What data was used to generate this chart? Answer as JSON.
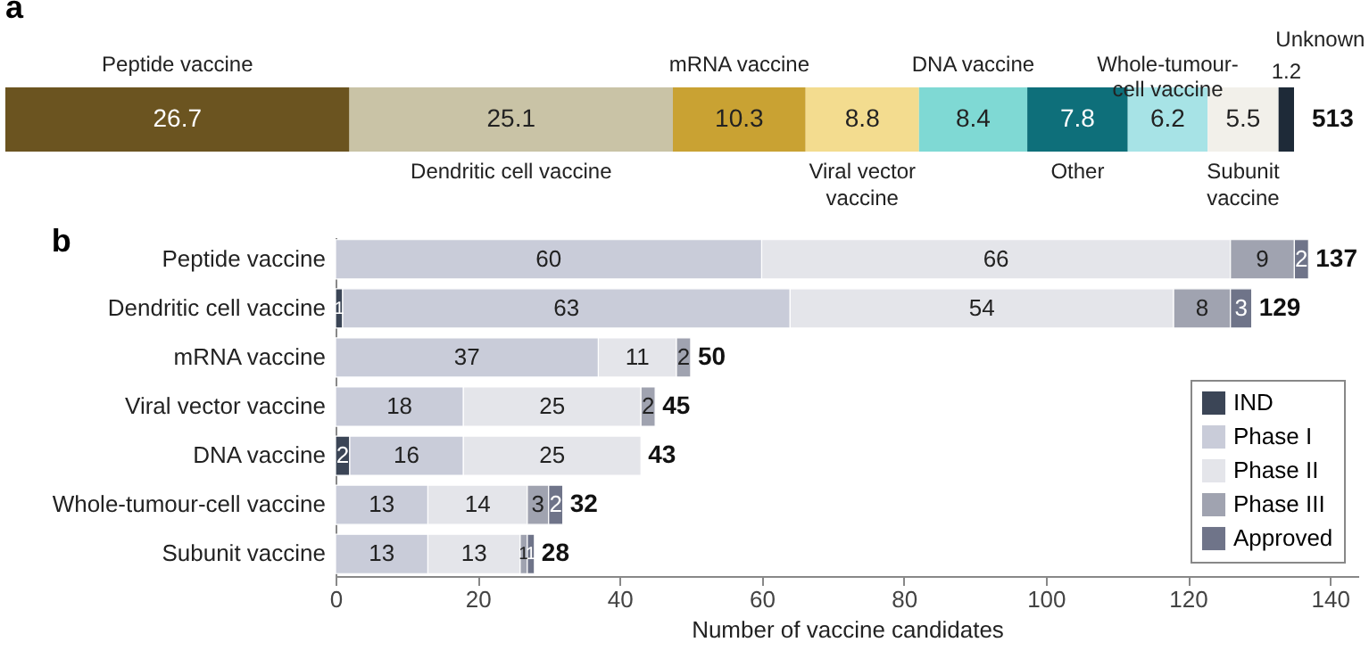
{
  "chart_data": [
    {
      "type": "bar",
      "title": "a",
      "orientation": "horizontal",
      "stacked": true,
      "categories": [
        null
      ],
      "xlim": [
        0,
        100
      ],
      "tick_labels": false,
      "data_labels": true,
      "annotations": [
        "513"
      ],
      "series": [
        {
          "name": "Peptide vaccine",
          "color": "#6b5420",
          "values": [
            26.7
          ]
        },
        {
          "name": "Dendritic cell vaccine",
          "color": "#c9c3a6",
          "values": [
            25.1
          ]
        },
        {
          "name": "mRNA vaccine",
          "color": "#c9a233",
          "values": [
            10.3
          ]
        },
        {
          "name": "Viral vector vaccine",
          "color": "#f3dc8f",
          "values": [
            8.8
          ]
        },
        {
          "name": "DNA vaccine",
          "color": "#7fd9d4",
          "values": [
            8.4
          ]
        },
        {
          "name": "Other",
          "color": "#0e6f7a",
          "values": [
            7.8
          ]
        },
        {
          "name": "Whole-tumour-cell vaccine",
          "color": "#a7e3e6",
          "values": [
            6.2
          ]
        },
        {
          "name": "Subunit vaccine",
          "color": "#f2f0ea",
          "values": [
            5.5
          ]
        },
        {
          "name": "Unknown",
          "color": "#1e2a38",
          "values": [
            1.2
          ]
        }
      ]
    },
    {
      "type": "bar",
      "title": "b",
      "orientation": "horizontal",
      "stacked": true,
      "xlabel": "Number of vaccine candidates",
      "xlim": [
        0,
        144
      ],
      "xticks": [
        0,
        20,
        40,
        60,
        80,
        100,
        120,
        140
      ],
      "legend": "bottom right",
      "data_labels": true,
      "categories": [
        "Peptide vaccine",
        "Dendritic cell vaccine",
        "mRNA vaccine",
        "Viral vector vaccine",
        "DNA vaccine",
        "Whole-tumour-cell vaccine",
        "Subunit vaccine"
      ],
      "totals": [
        "137",
        "129",
        "50",
        "45",
        "43",
        "32",
        "28"
      ],
      "series": [
        {
          "name": "IND",
          "color": "#3b4556",
          "values": [
            null,
            1,
            null,
            null,
            2,
            null,
            null
          ]
        },
        {
          "name": "Phase I",
          "color": "#c9ccd9",
          "values": [
            60,
            63,
            37,
            18,
            16,
            13,
            13
          ]
        },
        {
          "name": "Phase II",
          "color": "#e4e5ea",
          "values": [
            66,
            54,
            11,
            25,
            25,
            14,
            13
          ]
        },
        {
          "name": "Phase III",
          "color": "#a0a3b0",
          "values": [
            9,
            8,
            2,
            2,
            null,
            3,
            1
          ]
        },
        {
          "name": "Approved",
          "color": "#6f7489",
          "values": [
            2,
            3,
            null,
            null,
            null,
            2,
            1
          ]
        }
      ]
    }
  ]
}
